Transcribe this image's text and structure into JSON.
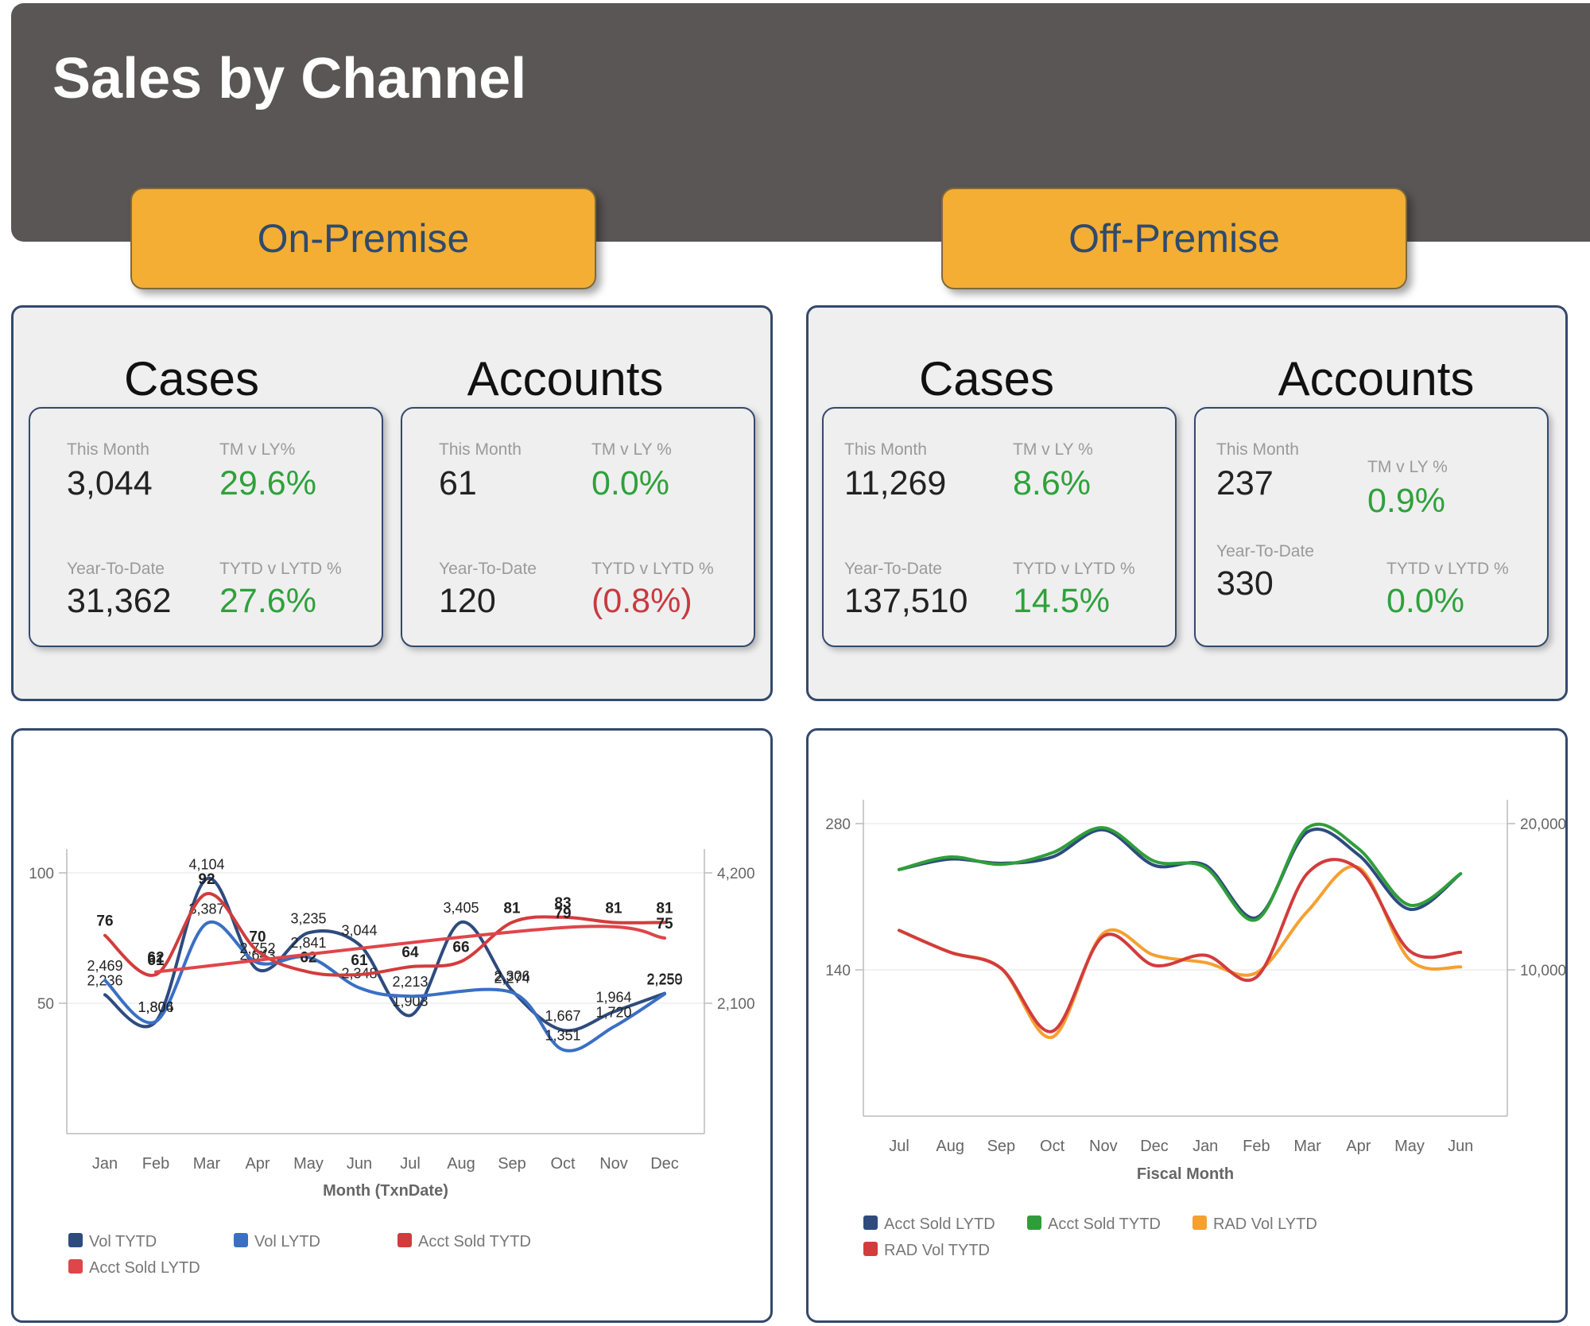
{
  "header": {
    "title": "Sales by Channel"
  },
  "tabs": {
    "on": "On-Premise",
    "off": "Off-Premise"
  },
  "labels": {
    "cases": "Cases",
    "accounts": "Accounts",
    "this_month": "This Month",
    "ytd": "Year-To-Date",
    "tm_ly_a": "TM v LY%",
    "tm_ly_b": "TM v LY %",
    "tytd": "TYTD v LYTD %"
  },
  "kpi": {
    "on_cases": {
      "tm": "3,044",
      "tm_pct": "29.6%",
      "ytd": "31,362",
      "ytd_pct": "27.6%"
    },
    "on_accounts": {
      "tm": "61",
      "tm_pct": "0.0%",
      "ytd": "120",
      "ytd_pct": "(0.8%)"
    },
    "off_cases": {
      "tm": "11,269",
      "tm_pct": "8.6%",
      "ytd": "137,510",
      "ytd_pct": "14.5%"
    },
    "off_accounts": {
      "tm": "237",
      "tm_pct": "0.9%",
      "ytd": "330",
      "ytd_pct": "0.0%"
    }
  },
  "colors": {
    "navy": "#2e4b7e",
    "blue": "#3a6fc4",
    "red": "#d23c3c",
    "red2": "#e0454a",
    "green": "#2f9e3a",
    "orange": "#f5a030"
  },
  "chart_data": [
    {
      "type": "line",
      "categories": [
        "Jan",
        "Feb",
        "Mar",
        "Apr",
        "May",
        "Jun",
        "Jul",
        "Aug",
        "Sep",
        "Oct",
        "Nov",
        "Dec"
      ],
      "xlabel": "Month (TxnDate)",
      "ylim": [
        0,
        100
      ],
      "y2lim": [
        0,
        4200
      ],
      "yticks": [
        "100",
        "50"
      ],
      "y2ticks": [
        "4,200",
        "2,100"
      ],
      "legend_position": "bottom",
      "series": [
        {
          "name": "Vol TYTD",
          "axis": "right",
          "color": "#2e4b7e",
          "values": [
            2236,
            1804,
            4104,
            2643,
            3235,
            3044,
            1903,
            3405,
            2306,
            1667,
            1964,
            2259
          ],
          "labels": [
            "2,236",
            "1,804",
            "4,104",
            "2,643",
            "3,235",
            "3,044",
            "1,903",
            "3,405",
            "2,306",
            "1,667",
            "1,964",
            "2,259"
          ]
        },
        {
          "name": "Vol LYTD",
          "axis": "right",
          "color": "#3a6fc4",
          "values": [
            2469,
            1806,
            3387,
            2752,
            2841,
            2348,
            2213,
            null,
            2274,
            1351,
            1720,
            2250
          ],
          "labels": [
            "2,469",
            "1,806",
            "3,387",
            "2,752",
            "2,841",
            "2,348",
            "2,213",
            "",
            "2,274",
            "1,351",
            "1,720",
            "2,250"
          ]
        },
        {
          "name": "Acct Sold TYTD",
          "axis": "left",
          "color": "#d23c3c",
          "values": [
            76,
            61,
            92,
            70,
            62,
            61,
            64,
            66,
            81,
            83,
            81,
            81
          ],
          "labels": [
            "76",
            "61",
            "92",
            "70",
            "62",
            "61",
            "64",
            "66",
            "81",
            "83",
            "81",
            "81"
          ]
        },
        {
          "name": "Acct Sold LYTD",
          "axis": "left",
          "color": "#e0454a",
          "values": [
            null,
            62,
            null,
            null,
            null,
            null,
            null,
            null,
            null,
            79,
            null,
            75
          ],
          "labels": [
            "",
            "62",
            "",
            "",
            "",
            "",
            "",
            "",
            "",
            "79",
            "",
            "75"
          ]
        }
      ]
    },
    {
      "type": "line",
      "categories": [
        "Jul",
        "Aug",
        "Sep",
        "Oct",
        "Nov",
        "Dec",
        "Jan",
        "Feb",
        "Mar",
        "Apr",
        "May",
        "Jun"
      ],
      "xlabel": "Fiscal Month",
      "ylim": [
        0,
        280
      ],
      "y2lim": [
        0,
        20000
      ],
      "yticks": [
        "280",
        "140"
      ],
      "y2ticks": [
        "20,000",
        "10,000"
      ],
      "legend_position": "bottom",
      "series": [
        {
          "name": "Acct Sold LYTD",
          "axis": "left",
          "color": "#2e4b7e",
          "values": [
            236,
            246,
            242,
            248,
            274,
            240,
            240,
            190,
            272,
            250,
            198,
            232
          ]
        },
        {
          "name": "Acct Sold TYTD",
          "axis": "left",
          "color": "#2f9e3a",
          "values": [
            236,
            248,
            241,
            252,
            276,
            244,
            238,
            188,
            276,
            256,
            202,
            232
          ]
        },
        {
          "name": "RAD Vol LYTD",
          "axis": "right",
          "color": "#f5a030",
          "values": [
            12700,
            11200,
            10100,
            5400,
            12500,
            11000,
            10500,
            9800,
            14000,
            17000,
            10700,
            10200
          ]
        },
        {
          "name": "RAD Vol TYTD",
          "axis": "right",
          "color": "#d23c3c",
          "values": [
            12700,
            11200,
            10100,
            5800,
            12300,
            10300,
            11000,
            9500,
            16600,
            16900,
            11300,
            11200
          ]
        }
      ]
    }
  ]
}
